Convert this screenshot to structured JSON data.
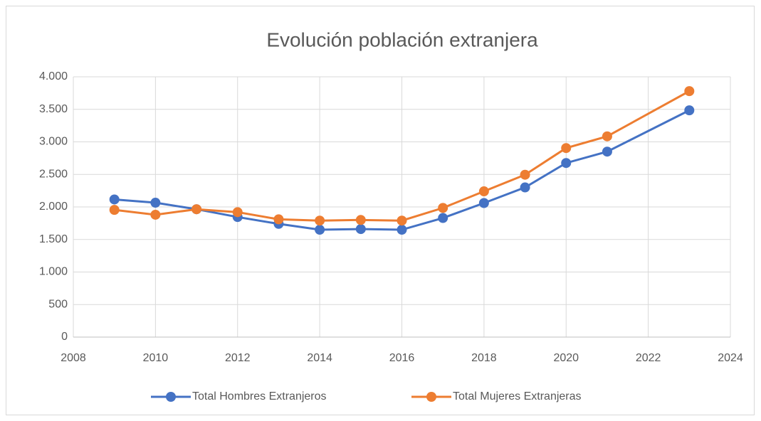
{
  "chart_data": {
    "type": "line",
    "title": "Evolución población extranjera",
    "x": [
      2009,
      2010,
      2011,
      2012,
      2013,
      2014,
      2015,
      2016,
      2017,
      2018,
      2019,
      2020,
      2021,
      2023
    ],
    "series": [
      {
        "name": "Total Hombres Extranjeros",
        "color": "#4472c4",
        "values": [
          2115,
          2065,
          1965,
          1845,
          1740,
          1650,
          1660,
          1650,
          1830,
          2060,
          2300,
          2675,
          2850,
          3485
        ]
      },
      {
        "name": "Total Mujeres Extranjeras",
        "color": "#ed7d31",
        "values": [
          1955,
          1880,
          1965,
          1920,
          1810,
          1790,
          1800,
          1790,
          1985,
          2240,
          2495,
          2905,
          3085,
          3780
        ]
      }
    ],
    "xlim": [
      2008,
      2024
    ],
    "xticks": [
      2008,
      2010,
      2012,
      2014,
      2016,
      2018,
      2020,
      2022,
      2024
    ],
    "ylim": [
      0,
      4000
    ],
    "yticks": [
      0,
      500,
      {
        "value": 1000,
        "label": "1.000"
      },
      {
        "value": 1500,
        "label": "1.500"
      },
      {
        "value": 2000,
        "label": "2.000"
      },
      {
        "value": 2500,
        "label": "2.500"
      },
      {
        "value": 3000,
        "label": "3.000"
      },
      {
        "value": 3500,
        "label": "3.500"
      },
      {
        "value": 4000,
        "label": "4.000"
      }
    ],
    "grid": true,
    "legend": "bottom"
  }
}
